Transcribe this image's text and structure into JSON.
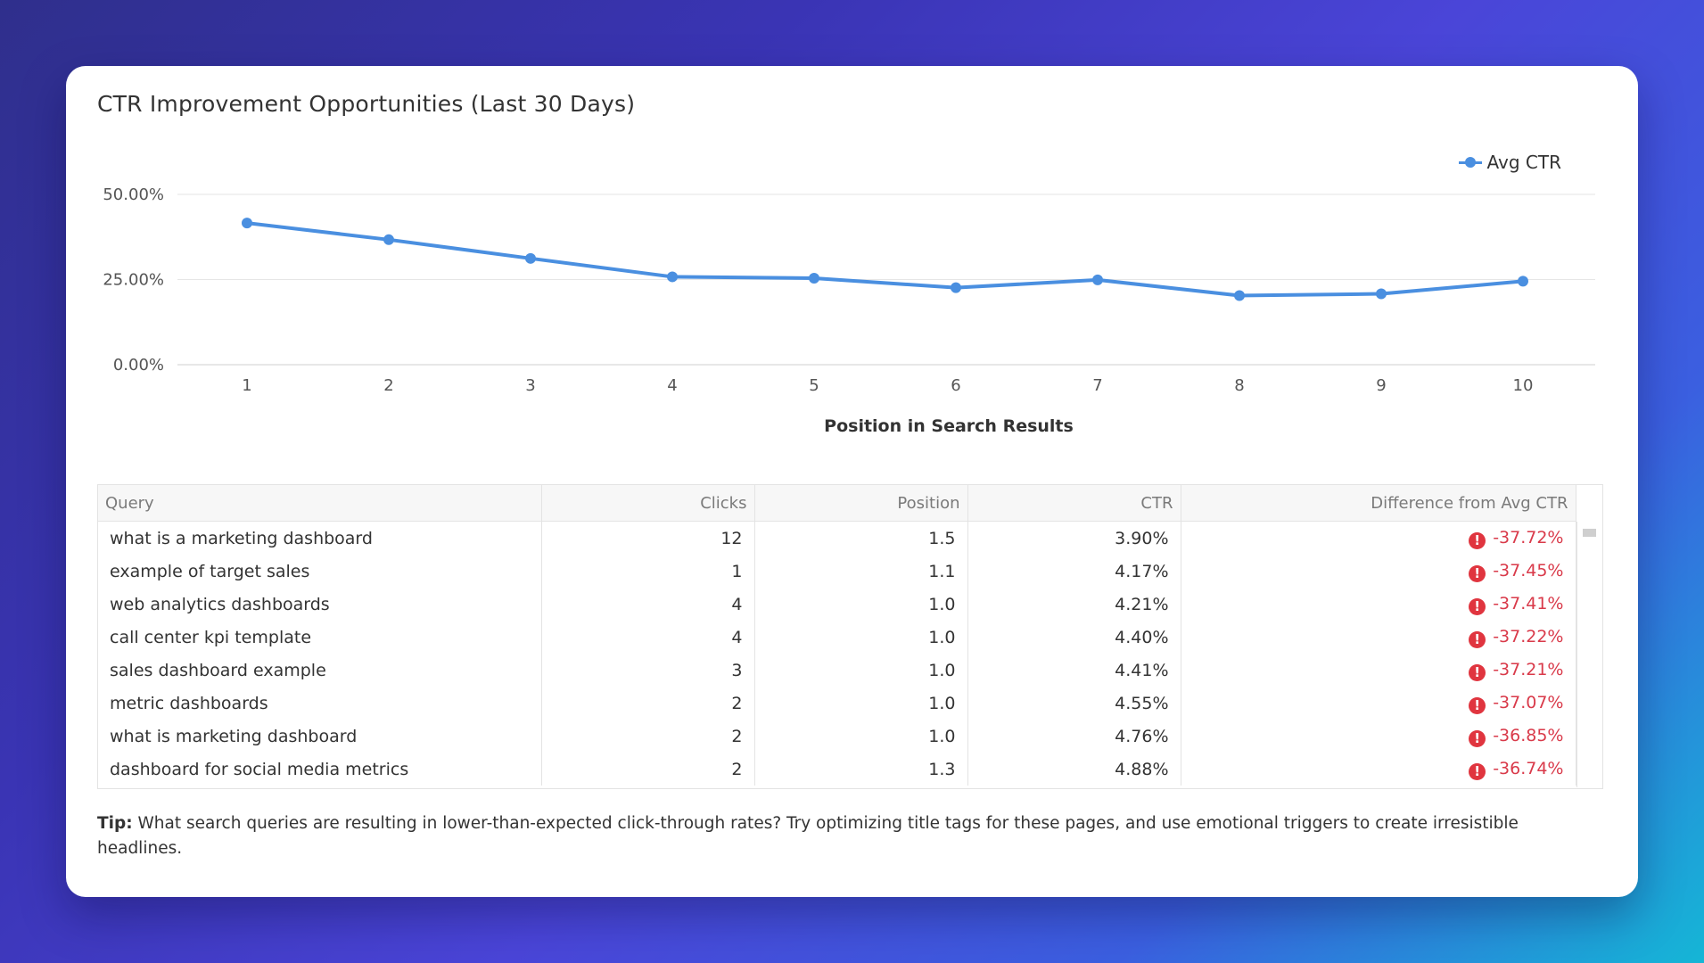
{
  "card": {
    "title": "CTR Improvement Opportunities (Last 30 Days)",
    "tip_label": "Tip:",
    "tip_text": "What search queries are resulting in lower-than-expected click-through rates? Try optimizing title tags for these pages, and use emotional triggers to create irresistible headlines."
  },
  "chart_data": {
    "type": "line",
    "x": [
      1,
      2,
      3,
      4,
      5,
      6,
      7,
      8,
      9,
      10
    ],
    "series": [
      {
        "name": "Avg CTR",
        "values": [
          41.6,
          36.7,
          31.2,
          25.8,
          25.4,
          22.6,
          24.9,
          20.3,
          20.8,
          24.5
        ],
        "color": "#4a8fe0"
      }
    ],
    "xlabel": "Position in Search Results",
    "ylabel": "",
    "ylim": [
      0,
      50
    ],
    "yticks": [
      "0.00%",
      "25.00%",
      "50.00%"
    ],
    "ytick_values": [
      0,
      25,
      50
    ],
    "xticks": [
      "1",
      "2",
      "3",
      "4",
      "5",
      "6",
      "7",
      "8",
      "9",
      "10"
    ],
    "grid": true,
    "legend": "top-right"
  },
  "table": {
    "headers": [
      "Query",
      "Clicks",
      "Position",
      "CTR",
      "Difference from Avg CTR"
    ],
    "rows": [
      {
        "query": "what is a marketing dashboard",
        "clicks": "12",
        "position": "1.5",
        "ctr": "3.90%",
        "diff": "-37.72%"
      },
      {
        "query": "example of target sales",
        "clicks": "1",
        "position": "1.1",
        "ctr": "4.17%",
        "diff": "-37.45%"
      },
      {
        "query": "web analytics dashboards",
        "clicks": "4",
        "position": "1.0",
        "ctr": "4.21%",
        "diff": "-37.41%"
      },
      {
        "query": "call center kpi template",
        "clicks": "4",
        "position": "1.0",
        "ctr": "4.40%",
        "diff": "-37.22%"
      },
      {
        "query": "sales dashboard example",
        "clicks": "3",
        "position": "1.0",
        "ctr": "4.41%",
        "diff": "-37.21%"
      },
      {
        "query": "metric dashboards",
        "clicks": "2",
        "position": "1.0",
        "ctr": "4.55%",
        "diff": "-37.07%"
      },
      {
        "query": "what is marketing dashboard",
        "clicks": "2",
        "position": "1.0",
        "ctr": "4.76%",
        "diff": "-36.85%"
      },
      {
        "query": "dashboard for social media metrics",
        "clicks": "2",
        "position": "1.3",
        "ctr": "4.88%",
        "diff": "-36.74%"
      }
    ],
    "warning_icon": "exclamation-circle-icon",
    "warning_color": "#e0353f"
  }
}
